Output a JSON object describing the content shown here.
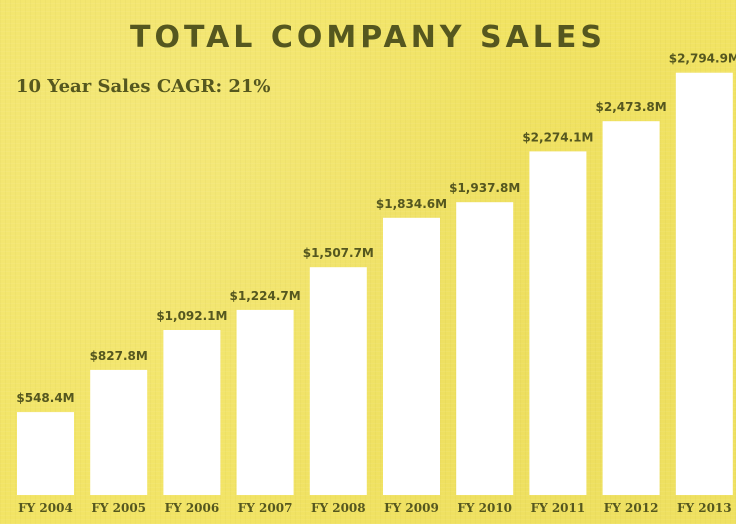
{
  "header": {
    "title": "TOTAL COMPANY SALES",
    "subtitle": "10 Year Sales CAGR: 21%"
  },
  "chart_data": {
    "type": "bar",
    "title": "TOTAL COMPANY SALES",
    "subtitle": "10 Year Sales CAGR: 21%",
    "categories": [
      "FY 2004",
      "FY 2005",
      "FY 2006",
      "FY 2007",
      "FY 2008",
      "FY 2009",
      "FY 2010",
      "FY 2011",
      "FY 2012",
      "FY 2013"
    ],
    "values": [
      548.4,
      827.8,
      1092.1,
      1224.7,
      1507.7,
      1834.6,
      1937.8,
      2274.1,
      2473.8,
      2794.9
    ],
    "value_labels": [
      "$548.4M",
      "$827.8M",
      "$1,092.1M",
      "$1,224.7M",
      "$1,507.7M",
      "$1,834.6M",
      "$1,937.8M",
      "$2,274.1M",
      "$2,473.8M",
      "$2,794.9M"
    ],
    "xlabel": "",
    "ylabel": "",
    "ylim": [
      0,
      3000
    ],
    "grid": false,
    "legend": "none",
    "colors": {
      "background": "#f2e464",
      "bar": "#ffffff",
      "text": "#55571f"
    }
  }
}
